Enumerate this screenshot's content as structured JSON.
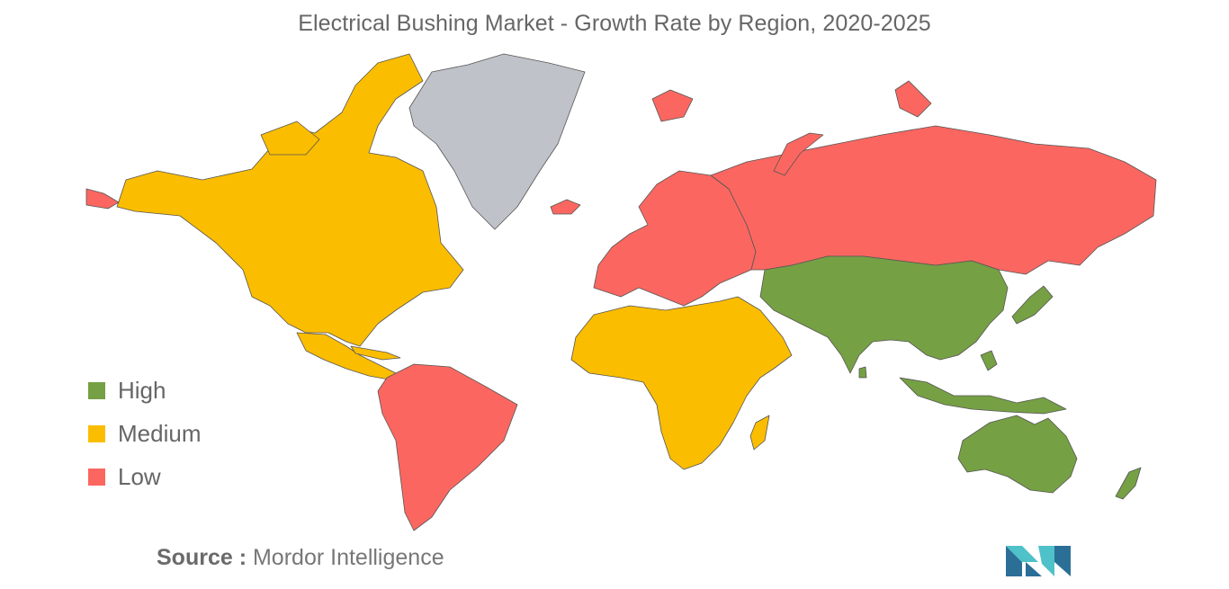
{
  "title": "Electrical Bushing Market - Growth Rate by Region, 2020-2025",
  "legend": [
    {
      "label": "High",
      "color": "#76a044"
    },
    {
      "label": "Medium",
      "color": "#fbbd00"
    },
    {
      "label": "Low",
      "color": "#fb6760"
    }
  ],
  "no_data_color": "#bfc2c8",
  "source": {
    "prefix": "Source :",
    "text": "Mordor Intelligence"
  },
  "regions": [
    {
      "name": "North America",
      "level": "Medium"
    },
    {
      "name": "Greenland",
      "level": "No data"
    },
    {
      "name": "Central America",
      "level": "Medium"
    },
    {
      "name": "South America",
      "level": "Low"
    },
    {
      "name": "Europe",
      "level": "Low"
    },
    {
      "name": "Russia",
      "level": "Low"
    },
    {
      "name": "Middle East and Africa",
      "level": "Medium"
    },
    {
      "name": "Asia-Pacific",
      "level": "High"
    },
    {
      "name": "Australia and New Zealand",
      "level": "High"
    }
  ],
  "logo_icon": "mordor-intelligence-logo-icon"
}
